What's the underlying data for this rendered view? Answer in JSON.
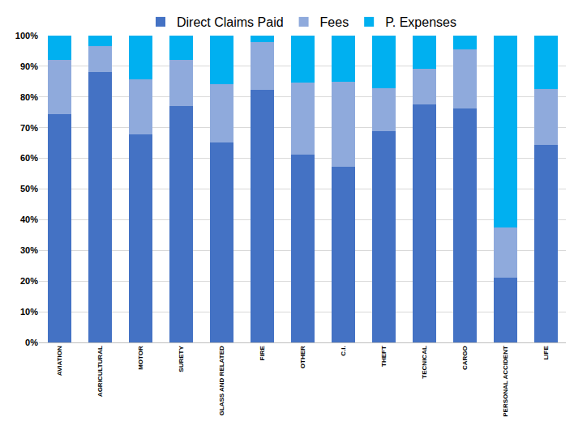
{
  "chart_data": {
    "type": "bar",
    "stacked": true,
    "legend": "top",
    "categories": [
      "AVIATION",
      "AGRICULTURAL",
      "MOTOR",
      "SURETY",
      "GLASS AND RELATED",
      "FIRE",
      "OTHER",
      "C.I.",
      "THEFT",
      "TECNICAL",
      "CARGO",
      "PERSONAL ACCIDENT",
      "LIFE"
    ],
    "series": [
      {
        "name": "Direct Claims Paid",
        "color": "#4472c4",
        "values": [
          74.5,
          88,
          67.7,
          77,
          65.3,
          82.2,
          61.2,
          57.3,
          68.8,
          77.5,
          76.2,
          21.2,
          64.4
        ]
      },
      {
        "name": "Fees",
        "color": "#8faadc",
        "values": [
          17.5,
          8.5,
          18,
          15.2,
          18.9,
          15.6,
          23.6,
          27.7,
          14,
          11.8,
          19.3,
          16.3,
          18.1
        ]
      },
      {
        "name": "P. Expenses",
        "color": "#00b0f0",
        "values": [
          8,
          3.5,
          14.3,
          7.8,
          15.8,
          2.2,
          15.2,
          15,
          17.2,
          10.7,
          4.5,
          62.5,
          17.5
        ]
      }
    ],
    "ylim": [
      0,
      100
    ],
    "yticks": [
      {
        "value": 0,
        "label": "0%"
      },
      {
        "value": 10,
        "label": "10%"
      },
      {
        "value": 20,
        "label": "20%"
      },
      {
        "value": 30,
        "label": "30%"
      },
      {
        "value": 40,
        "label": "40%"
      },
      {
        "value": 50,
        "label": "50%"
      },
      {
        "value": 60,
        "label": "60%"
      },
      {
        "value": 70,
        "label": "70%"
      },
      {
        "value": 80,
        "label": "80%"
      },
      {
        "value": 90,
        "label": "90%"
      },
      {
        "value": 100,
        "label": "100%"
      }
    ],
    "grid": true
  }
}
